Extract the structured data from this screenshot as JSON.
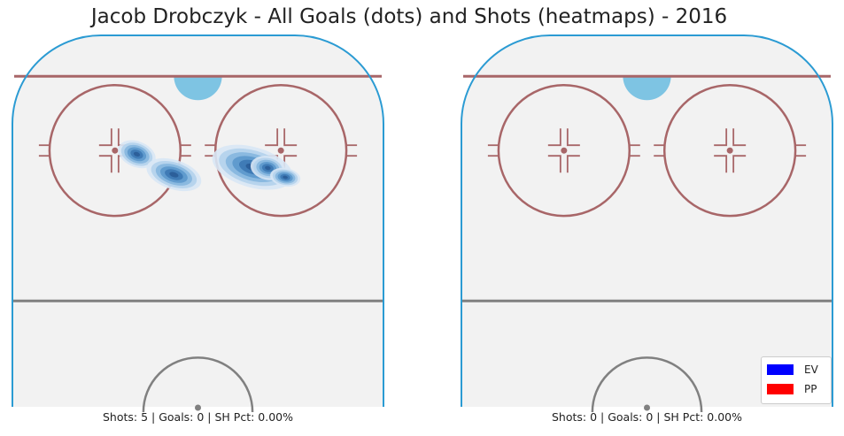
{
  "chart_data": {
    "type": "heatmap",
    "title": "Jacob Drobczyk - All Goals (dots) and Shots (heatmaps) - 2016",
    "legend": {
      "placement": "bottom-right",
      "entries": [
        {
          "label": "EV",
          "color": "#0000ff"
        },
        {
          "label": "PP",
          "color": "#ff0000"
        }
      ]
    },
    "panels": [
      {
        "caption": "Shots: 5 | Goals: 0 | SH Pct: 0.00%",
        "shots": 5,
        "goals": 0,
        "sh_pct": 0.0,
        "shot_density_blobs": [
          {
            "x": -14,
            "y": 68,
            "rx": 4.5,
            "ry": 1.4,
            "angle": 22
          },
          {
            "x": -5.5,
            "y": 62.5,
            "rx": 6.5,
            "ry": 1.6,
            "angle": 18
          },
          {
            "x": 12.5,
            "y": 64.5,
            "rx": 9.5,
            "ry": 2.2,
            "angle": 16
          },
          {
            "x": 16,
            "y": 64.3,
            "rx": 4.0,
            "ry": 1.3,
            "angle": 12
          },
          {
            "x": 20,
            "y": 61.8,
            "rx": 3.5,
            "ry": 1.0,
            "angle": 10
          }
        ]
      },
      {
        "caption": "Shots: 0 | Goals: 0 | SH Pct: 0.00%",
        "shots": 0,
        "goals": 0,
        "sh_pct": 0.0,
        "shot_density_blobs": []
      }
    ],
    "colors": {
      "ice": "#f2f2f2",
      "boards": "#2b9bd3",
      "goal_line": "#a86668",
      "crease": "#7ec4e3",
      "faceoff": "#a86668",
      "blue_line": "#808080",
      "heat": [
        "#d8e7f5",
        "#b3d1ec",
        "#85b6de",
        "#5b98cc",
        "#3c78b4",
        "#2a5c97"
      ]
    }
  }
}
